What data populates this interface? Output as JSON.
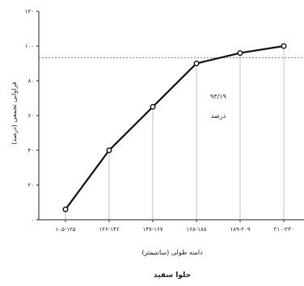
{
  "chart_data": {
    "type": "line",
    "categories": [
      "۱۰۵-۱۲۵",
      "۱۲۶-۱۴۶",
      "۱۴۷-۱۶۷",
      "۱۶۸-۱۸۸",
      "۱۸۹-۲۰۹",
      "۲۱۰-۲۳۰"
    ],
    "values": [
      6,
      40,
      65,
      90,
      96,
      100
    ],
    "ylim": [
      0,
      120
    ],
    "yticks": [
      0,
      20,
      40,
      60,
      80,
      100,
      120
    ],
    "ytick_labels": [
      "۰",
      "۲۰",
      "۴۰",
      "۶۰",
      "۸۰",
      "۱۰۰",
      "۱۲۰"
    ],
    "xlabel": "دامنه طولی (سانتیمتر)",
    "ylabel": "فراوانی تجمعی (درصد)",
    "caption": "حلوا سفید",
    "reference_line": {
      "value": 93.19,
      "label": "۹۳/۱۹",
      "sublabel": "درصد"
    },
    "grid": "vertical-guides",
    "colors": {
      "line": "#111111",
      "marker_fill": "#ffffff",
      "axis": "#222222",
      "guide": "#999999"
    }
  }
}
